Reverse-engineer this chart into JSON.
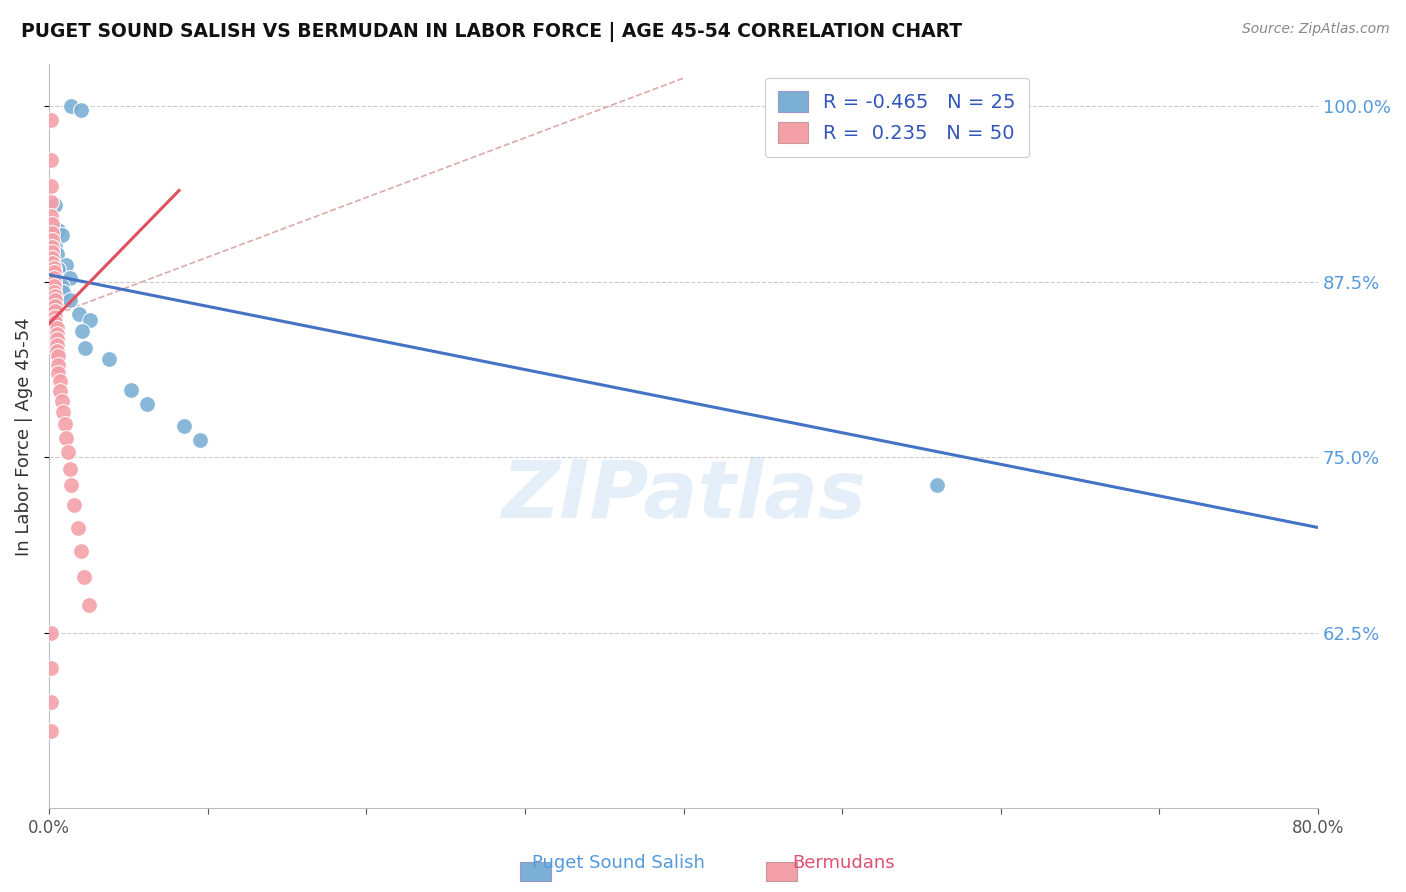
{
  "title": "PUGET SOUND SALISH VS BERMUDAN IN LABOR FORCE | AGE 45-54 CORRELATION CHART",
  "source": "Source: ZipAtlas.com",
  "ylabel": "In Labor Force | Age 45-54",
  "xlabel_blue": "Puget Sound Salish",
  "xlabel_pink": "Bermudans",
  "xlim": [
    0.0,
    0.8
  ],
  "ylim": [
    0.5,
    1.03
  ],
  "xticks": [
    0.0,
    0.1,
    0.2,
    0.3,
    0.4,
    0.5,
    0.6,
    0.7,
    0.8
  ],
  "xticklabels": [
    "0.0%",
    "",
    "",
    "",
    "",
    "",
    "",
    "",
    "80.0%"
  ],
  "ytick_positions": [
    0.625,
    0.75,
    0.875,
    1.0
  ],
  "ytick_labels": [
    "62.5%",
    "75.0%",
    "87.5%",
    "100.0%"
  ],
  "R_blue": -0.465,
  "N_blue": 25,
  "R_pink": 0.235,
  "N_pink": 50,
  "color_blue": "#7BAFD4",
  "color_pink": "#F4A0A8",
  "color_blue_line": "#4472C4",
  "color_pink_line": "#E05060",
  "watermark": "ZIPatlas",
  "blue_points": [
    [
      0.014,
      1.0
    ],
    [
      0.02,
      0.997
    ],
    [
      0.004,
      0.93
    ],
    [
      0.006,
      0.912
    ],
    [
      0.008,
      0.908
    ],
    [
      0.004,
      0.9
    ],
    [
      0.005,
      0.895
    ],
    [
      0.011,
      0.887
    ],
    [
      0.006,
      0.884
    ],
    [
      0.004,
      0.88
    ],
    [
      0.013,
      0.878
    ],
    [
      0.006,
      0.875
    ],
    [
      0.008,
      0.872
    ],
    [
      0.009,
      0.868
    ],
    [
      0.013,
      0.862
    ],
    [
      0.019,
      0.852
    ],
    [
      0.026,
      0.848
    ],
    [
      0.021,
      0.84
    ],
    [
      0.023,
      0.828
    ],
    [
      0.038,
      0.82
    ],
    [
      0.052,
      0.798
    ],
    [
      0.062,
      0.788
    ],
    [
      0.085,
      0.772
    ],
    [
      0.095,
      0.762
    ],
    [
      0.56,
      0.73
    ]
  ],
  "pink_points": [
    [
      0.001,
      0.99
    ],
    [
      0.001,
      0.962
    ],
    [
      0.001,
      0.943
    ],
    [
      0.001,
      0.932
    ],
    [
      0.001,
      0.922
    ],
    [
      0.002,
      0.916
    ],
    [
      0.002,
      0.91
    ],
    [
      0.002,
      0.905
    ],
    [
      0.002,
      0.9
    ],
    [
      0.002,
      0.896
    ],
    [
      0.002,
      0.892
    ],
    [
      0.002,
      0.888
    ],
    [
      0.003,
      0.885
    ],
    [
      0.003,
      0.882
    ],
    [
      0.003,
      0.878
    ],
    [
      0.003,
      0.875
    ],
    [
      0.003,
      0.872
    ],
    [
      0.003,
      0.868
    ],
    [
      0.004,
      0.865
    ],
    [
      0.004,
      0.862
    ],
    [
      0.004,
      0.858
    ],
    [
      0.004,
      0.854
    ],
    [
      0.004,
      0.85
    ],
    [
      0.004,
      0.846
    ],
    [
      0.005,
      0.842
    ],
    [
      0.005,
      0.838
    ],
    [
      0.005,
      0.834
    ],
    [
      0.005,
      0.83
    ],
    [
      0.005,
      0.826
    ],
    [
      0.006,
      0.822
    ],
    [
      0.006,
      0.816
    ],
    [
      0.006,
      0.81
    ],
    [
      0.007,
      0.804
    ],
    [
      0.007,
      0.797
    ],
    [
      0.008,
      0.79
    ],
    [
      0.009,
      0.782
    ],
    [
      0.01,
      0.774
    ],
    [
      0.011,
      0.764
    ],
    [
      0.012,
      0.754
    ],
    [
      0.013,
      0.742
    ],
    [
      0.014,
      0.73
    ],
    [
      0.016,
      0.716
    ],
    [
      0.018,
      0.7
    ],
    [
      0.02,
      0.683
    ],
    [
      0.022,
      0.665
    ],
    [
      0.025,
      0.645
    ],
    [
      0.001,
      0.625
    ],
    [
      0.001,
      0.6
    ],
    [
      0.001,
      0.576
    ],
    [
      0.001,
      0.555
    ]
  ],
  "blue_trend_x": [
    0.0,
    0.8
  ],
  "blue_trend_y": [
    0.88,
    0.7
  ],
  "pink_trend_x": [
    0.0,
    0.082
  ],
  "pink_trend_y": [
    0.845,
    0.94
  ],
  "ref_line_x": [
    0.0,
    0.4
  ],
  "ref_line_y": [
    0.85,
    1.02
  ]
}
